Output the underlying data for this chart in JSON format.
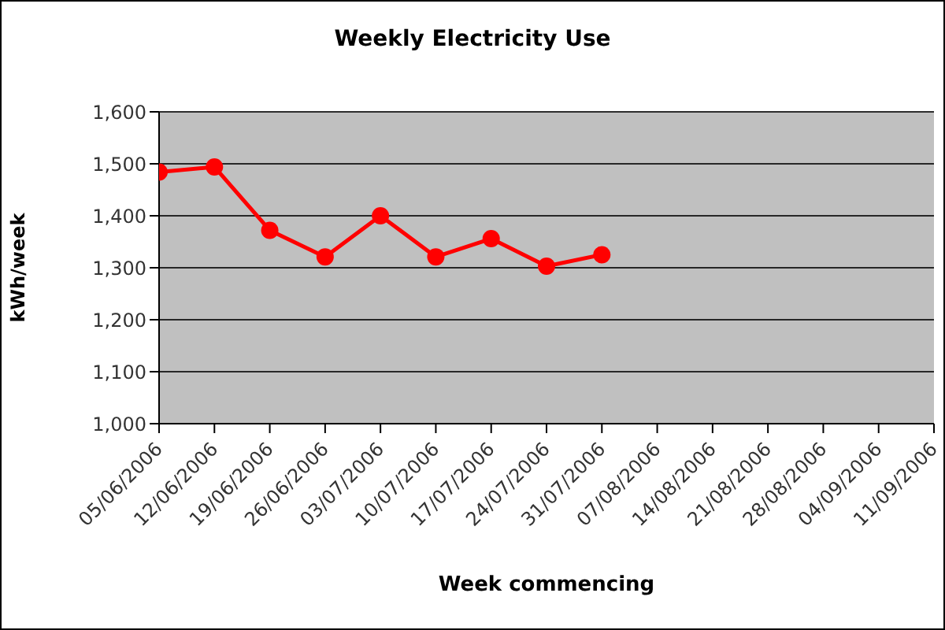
{
  "chart_data": {
    "type": "line",
    "title": "Weekly Electricity Use",
    "xlabel": "Week commencing",
    "ylabel": "kWh/week",
    "categories": [
      "05/06/2006",
      "12/06/2006",
      "19/06/2006",
      "26/06/2006",
      "03/07/2006",
      "10/07/2006",
      "17/07/2006",
      "24/07/2006",
      "31/07/2006",
      "07/08/2006",
      "14/08/2006",
      "21/08/2006",
      "28/08/2006",
      "04/09/2006",
      "11/09/2006"
    ],
    "series": [
      {
        "color": "#ff0000",
        "values": [
          1484,
          1494,
          1372,
          1321,
          1400,
          1321,
          1356,
          1303,
          1325,
          null,
          null,
          null,
          null,
          null,
          null
        ]
      }
    ],
    "ylim": [
      1000,
      1600
    ],
    "yticks": [
      {
        "value": 1000,
        "label": "1,000"
      },
      {
        "value": 1100,
        "label": "1,100"
      },
      {
        "value": 1200,
        "label": "1,200"
      },
      {
        "value": 1300,
        "label": "1,300"
      },
      {
        "value": 1400,
        "label": "1,400"
      },
      {
        "value": 1500,
        "label": "1,500"
      },
      {
        "value": 1600,
        "label": "1,600"
      }
    ],
    "grid": "y",
    "legend": false,
    "marker": "circle",
    "line_style": "solid"
  }
}
